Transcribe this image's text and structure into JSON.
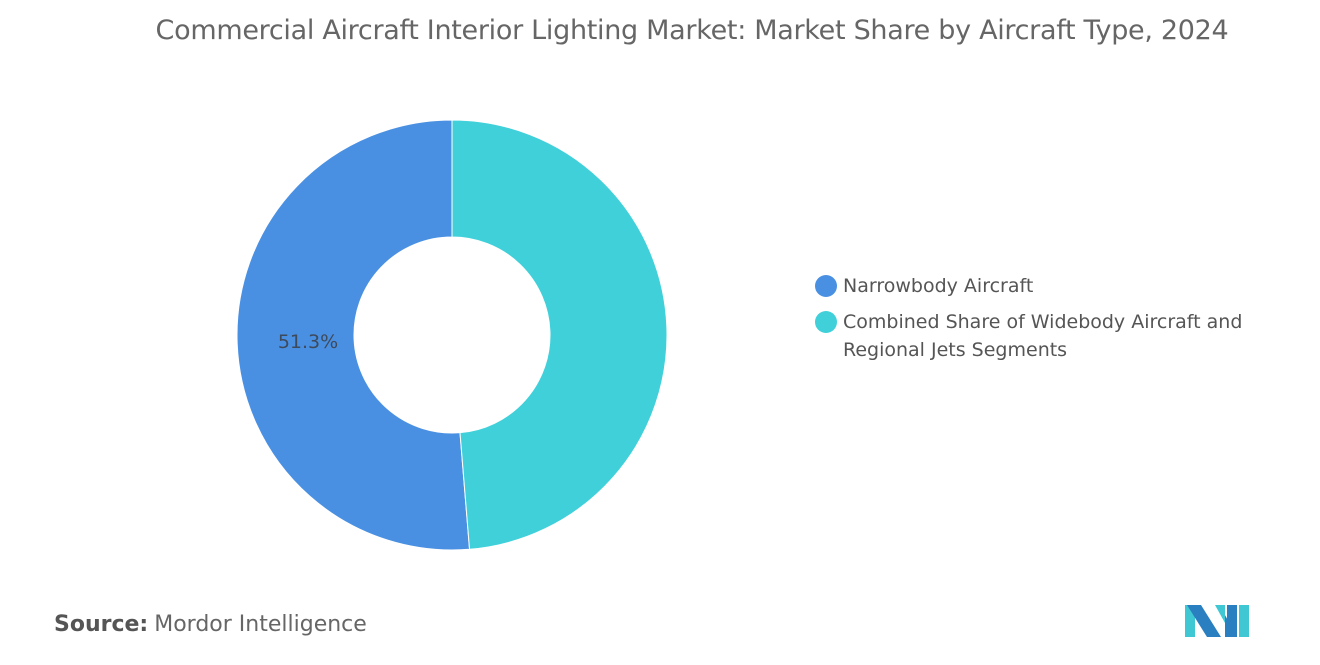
{
  "title": "Commercial Aircraft Interior Lighting Market: Market Share by Aircraft Type, 2024",
  "chart_data": {
    "type": "pie",
    "subtype": "donut",
    "title": "Commercial Aircraft Interior Lighting Market: Market Share by Aircraft Type, 2024",
    "categories": [
      "Narrowbody Aircraft",
      "Combined Share of Widebody Aircraft and Regional Jets Segments"
    ],
    "values": [
      51.3,
      48.7
    ],
    "data_labels": [
      "51.3%",
      ""
    ],
    "colors": [
      "#4a90e2",
      "#3fd0da"
    ],
    "legend_position": "right"
  },
  "source": {
    "label": "Source:",
    "value": "Mordor Intelligence"
  },
  "logo": {
    "text": "Mordor Intelligence",
    "colors": [
      "#2a7fc1",
      "#3fc8d4"
    ]
  }
}
